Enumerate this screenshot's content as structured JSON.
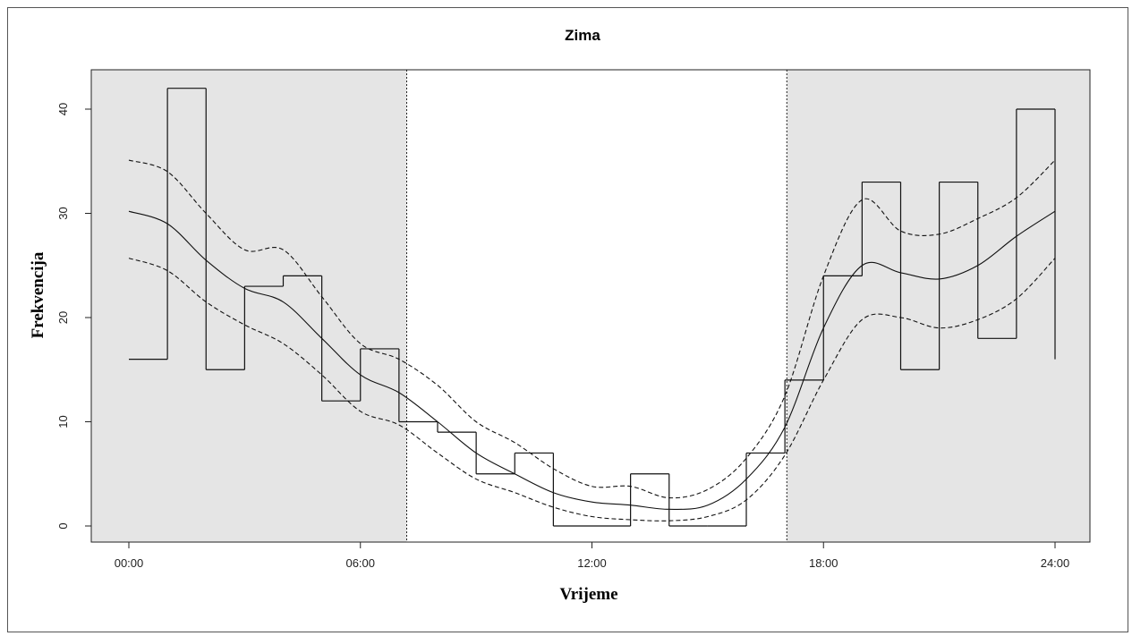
{
  "chart_data": {
    "type": "line",
    "title": "Zima",
    "xlabel": "Vrijeme",
    "ylabel": "Frekvencija",
    "xlim_hours": [
      0,
      24
    ],
    "ylim": [
      0,
      42
    ],
    "x_ticks": [
      {
        "hour": 0,
        "label": "00:00"
      },
      {
        "hour": 6,
        "label": "06:00"
      },
      {
        "hour": 12,
        "label": "12:00"
      },
      {
        "hour": 18,
        "label": "18:00"
      },
      {
        "hour": 24,
        "label": "24:00"
      }
    ],
    "y_ticks": [
      0,
      10,
      20,
      30,
      40
    ],
    "night_shading": [
      [
        0,
        7.2
      ],
      [
        17.05,
        24
      ]
    ],
    "night_shade_color": "#e5e5e5",
    "vertical_markers_hours": [
      7.2,
      17.05
    ],
    "histogram": {
      "bin_starts_hours": [
        0,
        1,
        2,
        3,
        4,
        5,
        6,
        7,
        8,
        9,
        10,
        11,
        12,
        13,
        14,
        15,
        16,
        17,
        18,
        19,
        20,
        21,
        22,
        23
      ],
      "counts": [
        16,
        42,
        15,
        23,
        24,
        12,
        17,
        10,
        9,
        5,
        7,
        0,
        0,
        5,
        0,
        0,
        7,
        14,
        24,
        33,
        15,
        33,
        18,
        40
      ]
    },
    "series": [
      {
        "style": "solid",
        "x": [
          0,
          1,
          2,
          3,
          4,
          5,
          6,
          7,
          8,
          9,
          10,
          11,
          12,
          13,
          14,
          15,
          16,
          17,
          18,
          19,
          20,
          21,
          22,
          23,
          24
        ],
        "values": [
          30.2,
          29.0,
          25.5,
          22.8,
          21.5,
          18.0,
          14.5,
          12.8,
          10.0,
          7.0,
          5.0,
          3.2,
          2.3,
          2.0,
          1.6,
          2.0,
          4.5,
          9.5,
          19.0,
          25.0,
          24.3,
          23.7,
          25.0,
          27.8,
          30.2
        ]
      },
      {
        "style": "dashed",
        "x": [
          0,
          1,
          2,
          3,
          4,
          5,
          6,
          7,
          8,
          9,
          10,
          11,
          12,
          13,
          14,
          15,
          16,
          17,
          18,
          19,
          20,
          21,
          22,
          23,
          24
        ],
        "values": [
          35.1,
          34.0,
          30.0,
          26.5,
          26.5,
          22.0,
          17.5,
          16.0,
          13.5,
          10.0,
          8.0,
          5.5,
          3.8,
          3.8,
          2.7,
          3.5,
          6.5,
          12.5,
          24.0,
          31.3,
          28.3,
          28.0,
          29.5,
          31.5,
          35.1
        ]
      },
      {
        "style": "dashed",
        "x": [
          0,
          1,
          2,
          3,
          4,
          5,
          6,
          7,
          8,
          9,
          10,
          11,
          12,
          13,
          14,
          15,
          16,
          17,
          18,
          19,
          20,
          21,
          22,
          23,
          24
        ],
        "values": [
          25.7,
          24.5,
          21.5,
          19.3,
          17.5,
          14.5,
          11.0,
          9.7,
          7.0,
          4.5,
          3.2,
          1.8,
          0.9,
          0.6,
          0.5,
          0.9,
          2.5,
          6.8,
          14.0,
          19.8,
          20.0,
          19.0,
          19.8,
          21.8,
          25.7
        ]
      }
    ]
  }
}
